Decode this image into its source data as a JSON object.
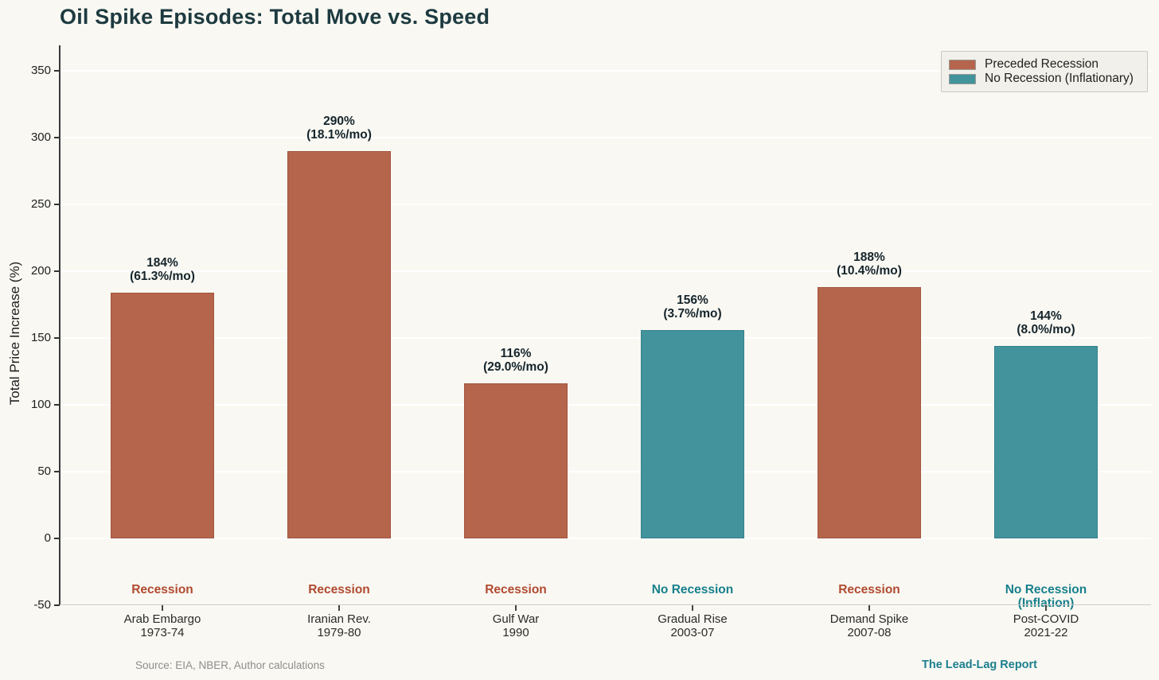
{
  "page": {
    "background": "#f9f8f2",
    "source_note": "Source: EIA, NBER, Author calculations",
    "branding": "The Lead-Lag Report"
  },
  "colors": {
    "title_text": "#1d3a40",
    "recession_fill": "#b5654c",
    "recession_edge": "#a3553e",
    "no_recession_fill": "#42939c",
    "no_recession_edge": "#35818b",
    "recession_label_text": "#b04a30",
    "no_recession_label_text": "#17808d",
    "branding_text": "#1b7f8e"
  },
  "legend": {
    "items": [
      {
        "label": "Preceded Recession",
        "color": "#b5654c"
      },
      {
        "label": "No Recession (Inflationary)",
        "color": "#42939c"
      }
    ]
  },
  "chart_data": {
    "type": "bar",
    "title": "Oil Spike Episodes: Total Move vs. Speed",
    "xlabel": "",
    "ylabel": "Total Price Increase (%)",
    "ylim": [
      -50,
      369
    ],
    "yticks": [
      350,
      300,
      250,
      200,
      150,
      100,
      50,
      0,
      -50
    ],
    "grid": true,
    "legend_position": "upper right",
    "bars": [
      {
        "episode": "Arab Embargo",
        "period": "1973-74",
        "total_increase_pct": 184,
        "monthly_rate_pct": 61.3,
        "value_label": "184%",
        "speed_label": "(61.3%/mo)",
        "group": "Preceded Recession",
        "group_label": "Recession",
        "category_label": "Arab Embargo\n1973-74"
      },
      {
        "episode": "Iranian Rev.",
        "period": "1979-80",
        "total_increase_pct": 290,
        "monthly_rate_pct": 18.1,
        "value_label": "290%",
        "speed_label": "(18.1%/mo)",
        "group": "Preceded Recession",
        "group_label": "Recession",
        "category_label": "Iranian Rev.\n1979-80"
      },
      {
        "episode": "Gulf War",
        "period": "1990",
        "total_increase_pct": 116,
        "monthly_rate_pct": 29.0,
        "value_label": "116%",
        "speed_label": "(29.0%/mo)",
        "group": "Preceded Recession",
        "group_label": "Recession",
        "category_label": "Gulf War\n1990"
      },
      {
        "episode": "Gradual Rise",
        "period": "2003-07",
        "total_increase_pct": 156,
        "monthly_rate_pct": 3.7,
        "value_label": "156%",
        "speed_label": "(3.7%/mo)",
        "group": "No Recession (Inflationary)",
        "group_label": "No Recession",
        "category_label": "Gradual Rise\n2003-07"
      },
      {
        "episode": "Demand Spike",
        "period": "2007-08",
        "total_increase_pct": 188,
        "monthly_rate_pct": 10.4,
        "value_label": "188%",
        "speed_label": "(10.4%/mo)",
        "group": "Preceded Recession",
        "group_label": "Recession",
        "category_label": "Demand Spike\n2007-08"
      },
      {
        "episode": "Post-COVID",
        "period": "2021-22",
        "total_increase_pct": 144,
        "monthly_rate_pct": 8.0,
        "value_label": "144%",
        "speed_label": "(8.0%/mo)",
        "group": "No Recession (Inflationary)",
        "group_label": "No Recession\n(Inflation)",
        "category_label": "Post-COVID\n2021-22"
      }
    ]
  }
}
